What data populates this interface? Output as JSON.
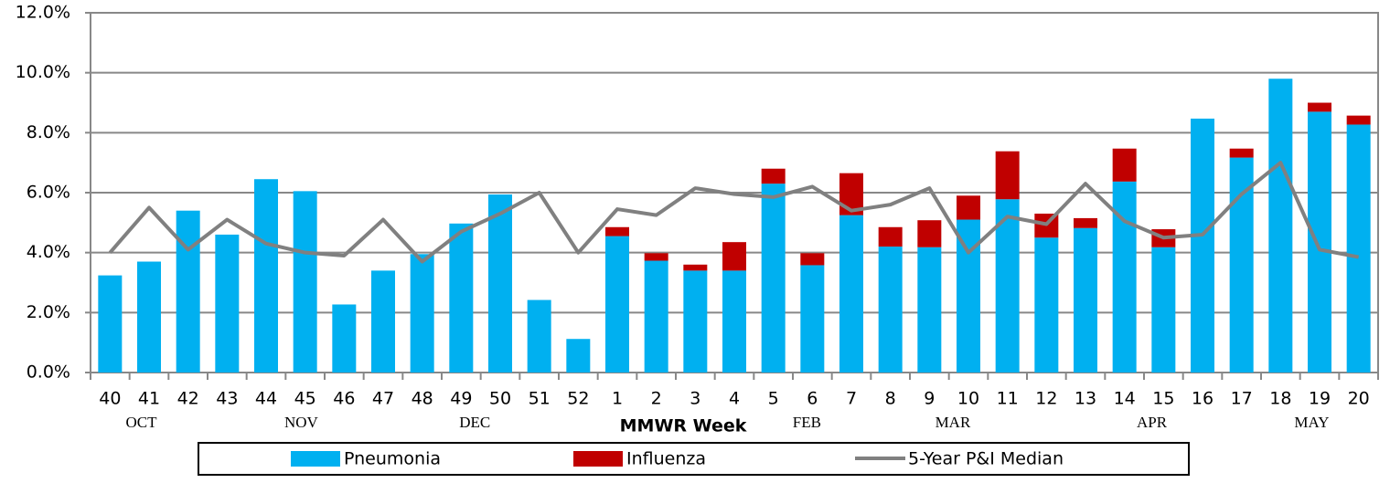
{
  "chart_data": {
    "type": "bar",
    "stacked": true,
    "categories": [
      "40",
      "41",
      "42",
      "43",
      "44",
      "45",
      "46",
      "47",
      "48",
      "49",
      "50",
      "51",
      "52",
      "1",
      "2",
      "3",
      "4",
      "5",
      "6",
      "7",
      "8",
      "9",
      "10",
      "11",
      "12",
      "13",
      "14",
      "15",
      "16",
      "17",
      "18",
      "19",
      "20"
    ],
    "series": [
      {
        "name": "Pneumonia",
        "color": "#00b0f0",
        "values": [
          3.24,
          3.7,
          5.4,
          4.6,
          6.45,
          6.05,
          2.27,
          3.4,
          3.95,
          4.97,
          5.94,
          2.42,
          1.12,
          4.55,
          3.73,
          3.4,
          3.4,
          6.3,
          3.58,
          5.25,
          4.2,
          4.18,
          5.1,
          5.78,
          4.5,
          4.82,
          6.37,
          4.18,
          8.47,
          7.17,
          9.8,
          8.7,
          8.27
        ]
      },
      {
        "name": "Influenza",
        "color": "#c00000",
        "values": [
          0,
          0,
          0,
          0,
          0,
          0,
          0,
          0,
          0,
          0,
          0,
          0,
          0,
          0.3,
          0.25,
          0.2,
          0.95,
          0.5,
          0.4,
          1.4,
          0.65,
          0.9,
          0.8,
          1.6,
          0.8,
          0.33,
          1.1,
          0.6,
          0,
          0.3,
          0,
          0.3,
          0.3
        ]
      },
      {
        "name": "5-Year P&I Median",
        "color": "#808080",
        "type": "line",
        "values": [
          4.0,
          5.5,
          4.1,
          5.1,
          4.3,
          4.0,
          3.9,
          5.1,
          3.7,
          4.7,
          5.3,
          6.0,
          4.0,
          5.45,
          5.25,
          6.15,
          5.95,
          5.85,
          6.2,
          5.4,
          5.6,
          6.15,
          4.0,
          5.2,
          4.95,
          6.3,
          5.05,
          4.5,
          4.6,
          5.95,
          7.0,
          4.1,
          3.85
        ]
      }
    ],
    "x_label": "MMWR Week",
    "months": [
      "OCT",
      "NOV",
      "DEC",
      "FEB",
      "MAR",
      "APR",
      "MAY"
    ],
    "ylim": [
      0,
      12
    ],
    "yticks": [
      {
        "value": 0,
        "label": "0.0%"
      },
      {
        "value": 2,
        "label": "2.0%"
      },
      {
        "value": 4,
        "label": "4.0%"
      },
      {
        "value": 6,
        "label": "6.0%"
      },
      {
        "value": 8,
        "label": "8.0%"
      },
      {
        "value": 10,
        "label": "10.0%"
      },
      {
        "value": 12,
        "label": "12.0%"
      }
    ],
    "grid": true,
    "legend": "bottom"
  }
}
